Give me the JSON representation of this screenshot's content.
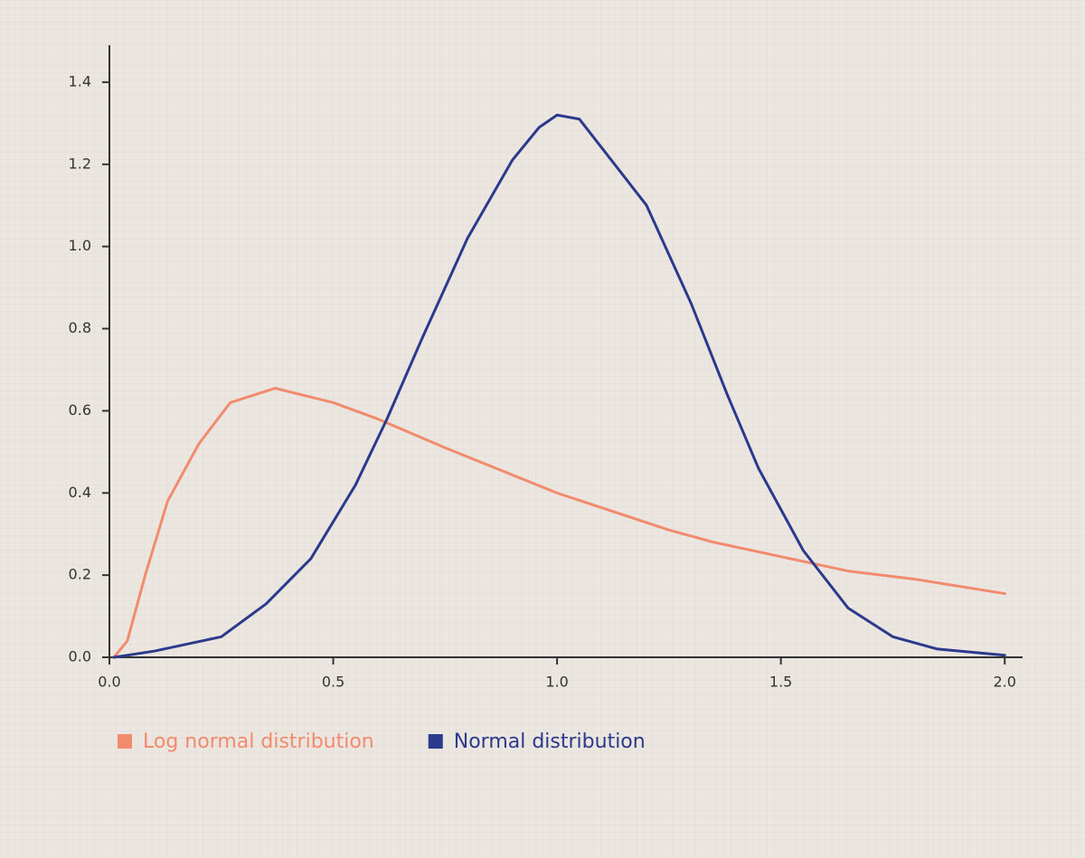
{
  "chart_data": {
    "type": "line",
    "series": [
      {
        "name": "Log normal distribution",
        "color": "#f28b6e",
        "x": [
          0.01,
          0.04,
          0.08,
          0.13,
          0.2,
          0.27,
          0.37,
          0.5,
          0.6,
          0.75,
          1.0,
          1.25,
          1.35,
          1.5,
          1.65,
          1.8,
          2.0
        ],
        "values": [
          0,
          0.04,
          0.2,
          0.38,
          0.52,
          0.62,
          0.655,
          0.62,
          0.58,
          0.51,
          0.4,
          0.31,
          0.28,
          0.245,
          0.21,
          0.19,
          0.155
        ]
      },
      {
        "name": "Normal distribution",
        "color": "#2b3a8c",
        "x": [
          0.01,
          0.1,
          0.25,
          0.35,
          0.45,
          0.55,
          0.62,
          0.7,
          0.8,
          0.9,
          0.96,
          1.0,
          1.05,
          1.1,
          1.2,
          1.3,
          1.38,
          1.45,
          1.55,
          1.65,
          1.75,
          1.85,
          2.0
        ],
        "values": [
          0,
          0.015,
          0.05,
          0.13,
          0.24,
          0.42,
          0.58,
          0.78,
          1.02,
          1.21,
          1.29,
          1.32,
          1.31,
          1.24,
          1.1,
          0.86,
          0.64,
          0.46,
          0.26,
          0.12,
          0.05,
          0.02,
          0.005
        ]
      }
    ],
    "xlim": [
      0,
      2.04
    ],
    "ylim": [
      0,
      1.49
    ],
    "xticks": [
      {
        "value": 0,
        "label": "0.0"
      },
      0.5,
      {
        "value": 1,
        "label": "1.0"
      },
      1.5,
      {
        "value": 2,
        "label": "2.0"
      }
    ],
    "yticks": [
      {
        "value": 0,
        "label": "0.0"
      },
      0.2,
      0.4,
      0.6,
      0.8,
      {
        "value": 1,
        "label": "1.0"
      },
      1.2,
      1.4
    ],
    "legend": "bottom-left"
  }
}
